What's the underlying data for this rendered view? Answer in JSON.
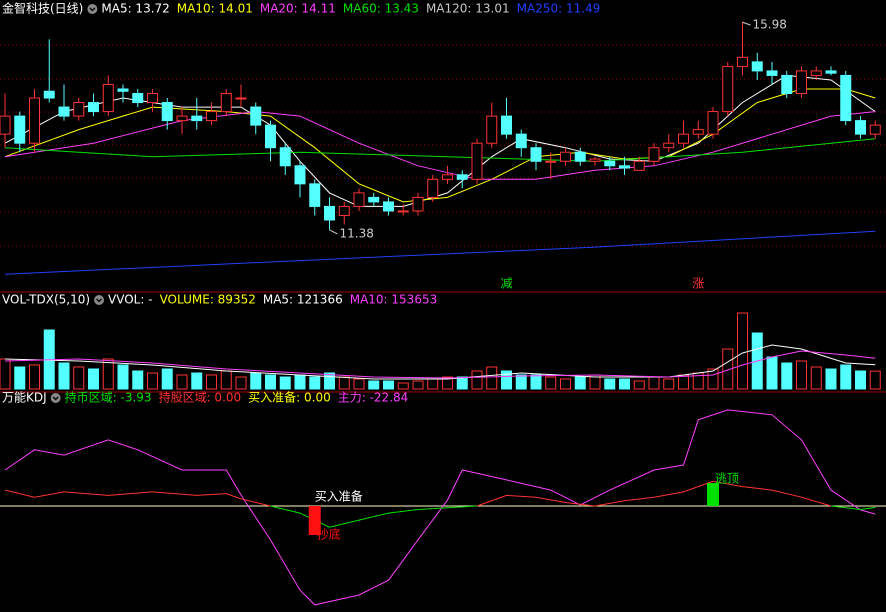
{
  "chart_data": [
    {
      "type": "candlestick",
      "title": "金智科技(日线)",
      "legend": [
        {
          "text": "MA5: 13.72",
          "color": "#ffffff"
        },
        {
          "text": "MA10: 14.01",
          "color": "#ffff00"
        },
        {
          "text": "MA20: 14.11",
          "color": "#ff40ff"
        },
        {
          "text": "MA60: 13.43",
          "color": "#00e000"
        },
        {
          "text": "MA120: 13.01",
          "color": "#c8c8c8"
        },
        {
          "text": "MA250: 11.49",
          "color": "#2040ff"
        }
      ],
      "open": [
        13.5,
        13.9,
        13.3,
        14.45,
        14.1,
        13.9,
        14.2,
        14.0,
        14.5,
        14.4,
        14.2,
        14.2,
        13.8,
        13.9,
        13.8,
        14.0,
        14.3,
        14.1,
        13.7,
        13.2,
        12.8,
        12.4,
        11.9,
        11.7,
        11.9,
        12.1,
        12.0,
        11.8,
        11.8,
        12.1,
        12.5,
        12.6,
        12.5,
        13.3,
        13.9,
        13.5,
        13.2,
        12.9,
        12.9,
        13.1,
        12.9,
        12.9,
        12.8,
        12.7,
        12.9,
        13.2,
        13.3,
        13.5,
        13.5,
        14.0,
        15.0,
        15.1,
        14.9,
        14.8,
        14.4,
        14.8,
        14.9,
        14.8,
        13.8,
        13.5
      ],
      "high": [
        14.4,
        14.0,
        14.5,
        15.6,
        14.6,
        14.3,
        14.4,
        14.8,
        14.6,
        14.5,
        14.5,
        14.3,
        14.1,
        14.3,
        14.2,
        14.5,
        14.6,
        14.2,
        13.8,
        13.3,
        12.9,
        12.5,
        12.1,
        12.0,
        12.3,
        12.2,
        12.1,
        11.95,
        12.2,
        12.6,
        12.8,
        12.7,
        13.4,
        14.2,
        14.3,
        13.6,
        13.3,
        13.1,
        13.2,
        13.2,
        13.0,
        13.0,
        13.0,
        13.0,
        13.3,
        13.5,
        13.8,
        13.8,
        14.1,
        15.1,
        15.98,
        15.3,
        15.1,
        14.9,
        15.0,
        15.0,
        15.0,
        14.9,
        13.9,
        13.8
      ],
      "low": [
        13.2,
        13.1,
        13.1,
        14.2,
        13.8,
        13.8,
        13.9,
        13.9,
        14.2,
        14.1,
        14.0,
        13.6,
        13.5,
        13.6,
        13.7,
        13.9,
        14.1,
        13.5,
        12.9,
        12.6,
        12.1,
        11.7,
        11.38,
        11.5,
        11.8,
        11.9,
        11.7,
        11.7,
        11.7,
        12.0,
        12.4,
        12.3,
        12.4,
        13.2,
        13.4,
        13.0,
        12.7,
        12.5,
        12.8,
        12.8,
        12.8,
        12.7,
        12.6,
        12.7,
        12.8,
        13.1,
        13.2,
        13.4,
        13.4,
        13.9,
        14.8,
        14.7,
        14.6,
        14.3,
        14.3,
        14.7,
        14.8,
        13.7,
        13.4,
        13.4
      ],
      "close": [
        13.9,
        13.3,
        14.3,
        14.3,
        13.9,
        14.2,
        14.0,
        14.6,
        14.45,
        14.2,
        14.4,
        13.8,
        13.9,
        13.8,
        14.0,
        14.4,
        14.3,
        13.7,
        13.2,
        12.8,
        12.4,
        11.9,
        11.6,
        11.9,
        12.2,
        12.0,
        11.8,
        11.8,
        12.1,
        12.5,
        12.6,
        12.5,
        13.3,
        13.9,
        13.5,
        13.2,
        12.9,
        12.9,
        13.1,
        12.9,
        12.95,
        12.8,
        12.75,
        12.9,
        13.2,
        13.3,
        13.5,
        13.6,
        14.0,
        15.0,
        15.2,
        14.9,
        14.8,
        14.4,
        14.9,
        14.9,
        14.85,
        13.8,
        13.5,
        13.7
      ],
      "up_color": "#ff3232",
      "down_color": "#54ffff",
      "series": [
        {
          "color": "#ffffff",
          "x": [
            0,
            4,
            8,
            12,
            16,
            18,
            20,
            22,
            24,
            27,
            30,
            33,
            35,
            38,
            41,
            44,
            47,
            50,
            53,
            56,
            59
          ],
          "values": [
            13.3,
            14.0,
            14.3,
            14.1,
            14.1,
            13.7,
            12.9,
            12.2,
            11.9,
            11.9,
            12.2,
            13.0,
            13.4,
            13.2,
            12.95,
            12.9,
            13.3,
            14.2,
            14.8,
            14.7,
            14.0
          ]
        },
        {
          "color": "#ffff00",
          "x": [
            0,
            5,
            10,
            15,
            18,
            21,
            24,
            27,
            30,
            33,
            36,
            39,
            42,
            45,
            48,
            51,
            54,
            57,
            59
          ],
          "values": [
            13.0,
            13.6,
            14.1,
            14.0,
            13.9,
            13.2,
            12.4,
            12.0,
            12.1,
            12.5,
            13.0,
            13.1,
            12.95,
            13.0,
            13.5,
            14.2,
            14.5,
            14.5,
            14.3
          ]
        },
        {
          "color": "#ff40ff",
          "x": [
            0,
            6,
            12,
            17,
            20,
            24,
            28,
            32,
            36,
            40,
            44,
            48,
            52,
            56,
            59
          ],
          "values": [
            13.0,
            13.3,
            13.8,
            14.0,
            13.9,
            13.3,
            12.8,
            12.5,
            12.5,
            12.7,
            12.8,
            13.1,
            13.5,
            13.9,
            14.0
          ]
        },
        {
          "color": "#00e000",
          "x": [
            0,
            10,
            20,
            30,
            40,
            50,
            59
          ],
          "values": [
            13.2,
            13.0,
            13.1,
            13.0,
            12.9,
            13.1,
            13.4
          ]
        },
        {
          "color": "#2040ff",
          "x": [
            0,
            20,
            40,
            59
          ],
          "values": [
            10.4,
            10.7,
            11.0,
            11.35
          ]
        }
      ],
      "annotations": [
        {
          "index": 50,
          "value": 15.98
        },
        {
          "index": 22,
          "value": 11.38
        }
      ],
      "signals": [
        {
          "index": 34,
          "text": "减",
          "color": "#00e000"
        },
        {
          "index": 47,
          "text": "涨",
          "color": "#ff3232"
        }
      ],
      "ylim": [
        10.05,
        16.47
      ]
    },
    {
      "type": "bar",
      "title": "VOL-TDX(5,10)",
      "legend": [
        {
          "text": "VVOL: -",
          "color": "#ffffff"
        },
        {
          "text": "VOLUME: 89352",
          "color": "#ffff00"
        },
        {
          "text": "MA5: 121366",
          "color": "#ffffff"
        },
        {
          "text": "MA10: 153653",
          "color": "#ff40ff"
        }
      ],
      "values": [
        150000,
        110000,
        120000,
        295000,
        130000,
        110000,
        100000,
        150000,
        120000,
        90000,
        80000,
        100000,
        70000,
        80000,
        70000,
        90000,
        60000,
        80000,
        70000,
        60000,
        70000,
        60000,
        80000,
        60000,
        50000,
        40000,
        40000,
        30000,
        40000,
        50000,
        60000,
        60000,
        90000,
        110000,
        90000,
        70000,
        70000,
        60000,
        50000,
        60000,
        70000,
        50000,
        50000,
        40000,
        60000,
        50000,
        70000,
        80000,
        100000,
        200000,
        380000,
        280000,
        160000,
        130000,
        140000,
        110000,
        100000,
        120000,
        90000,
        89352
      ],
      "series": [
        {
          "color": "#ffffff",
          "x": [
            0,
            5,
            10,
            15,
            20,
            25,
            30,
            35,
            40,
            45,
            48,
            50,
            52,
            54,
            57,
            59
          ],
          "values": [
            150000,
            140000,
            120000,
            90000,
            70000,
            50000,
            50000,
            80000,
            60000,
            60000,
            90000,
            180000,
            220000,
            200000,
            130000,
            121366
          ]
        },
        {
          "color": "#ff40ff",
          "x": [
            0,
            5,
            10,
            15,
            20,
            25,
            30,
            35,
            40,
            45,
            48,
            50,
            52,
            54,
            57,
            59
          ],
          "values": [
            140000,
            150000,
            130000,
            100000,
            80000,
            60000,
            55000,
            65000,
            70000,
            60000,
            70000,
            120000,
            160000,
            190000,
            170000,
            153653
          ]
        }
      ],
      "ylim": [
        0,
        400000
      ]
    },
    {
      "type": "line",
      "title": "万能KDJ",
      "legend": [
        {
          "text": "持币区域: -3.93",
          "color": "#00e000"
        },
        {
          "text": "持股区域: 0.00",
          "color": "#ff3232"
        },
        {
          "text": "买入准备: 0.00",
          "color": "#ffff00"
        },
        {
          "text": "主力: -22.84",
          "color": "#ff40ff"
        }
      ],
      "series": [
        {
          "color": "#ff40ff",
          "x": [
            0,
            2,
            4,
            7,
            9,
            12,
            15,
            16,
            18,
            20,
            21,
            24,
            26,
            28,
            30,
            31,
            34,
            37,
            39,
            41,
            44,
            46,
            47,
            49,
            52,
            54,
            56,
            58,
            59
          ],
          "values": [
            102,
            159,
            144,
            187,
            159,
            102,
            102,
            31,
            -96,
            -238,
            -280,
            -252,
            -210,
            -96,
            17,
            102,
            74,
            45,
            3,
            45,
            102,
            116,
            244,
            272,
            258,
            187,
            45,
            -11,
            -22.84
          ]
        },
        {
          "color": "#ff3232",
          "x": [
            0,
            2,
            4,
            7,
            10,
            13,
            15,
            16,
            18,
            25,
            32,
            34,
            36,
            38,
            40,
            42,
            44,
            46,
            48,
            50,
            52,
            54,
            56
          ],
          "values": [
            45,
            25,
            40,
            30,
            40,
            30,
            35,
            20,
            0,
            null,
            0,
            30,
            25,
            10,
            0,
            15,
            25,
            40,
            70,
            55,
            45,
            25,
            0
          ]
        },
        {
          "color": "#00e000",
          "x": [
            18,
            20,
            22,
            24,
            26,
            28,
            30,
            32,
            44,
            56,
            58,
            59
          ],
          "values": [
            0,
            -20,
            -60,
            -40,
            -20,
            -10,
            -5,
            0,
            null,
            0,
            -10,
            -3.93
          ]
        }
      ],
      "bars": [
        {
          "index": 21,
          "value": -82,
          "color": "#ff1010",
          "text": "抄底"
        },
        {
          "index": 48,
          "value": 65,
          "color": "#00e000",
          "text": "逃顶"
        }
      ],
      "marker_text": {
        "index": 21,
        "text": "买入准备"
      },
      "ylim": [
        -300,
        300
      ]
    }
  ]
}
